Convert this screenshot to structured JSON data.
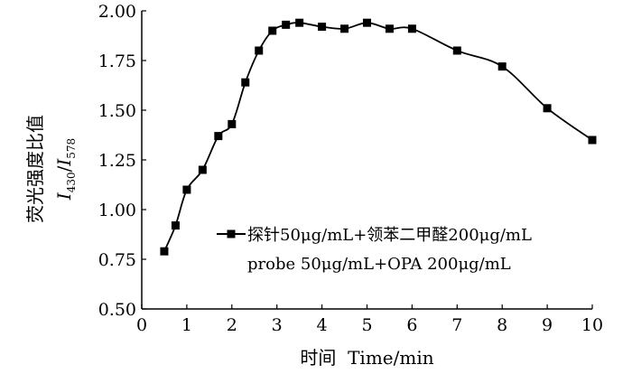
{
  "chart_data": {
    "type": "line",
    "xlabel": "时间  Time/min",
    "ylabel": {
      "line1": "荧光强度比值",
      "line2_prefix": "I",
      "line2_sub1": "430",
      "line2_sep": "/",
      "line2_prefix2": "I",
      "line2_sub2": "578"
    },
    "xlim": [
      0,
      10
    ],
    "ylim": [
      0.5,
      2.0
    ],
    "x_ticks": [
      "0",
      "1",
      "2",
      "3",
      "4",
      "5",
      "6",
      "7",
      "8",
      "9",
      "10"
    ],
    "y_ticks": [
      "0.50",
      "0.75",
      "1.00",
      "1.25",
      "1.50",
      "1.75",
      "2.00"
    ],
    "grid": false,
    "legend_position": "center-right",
    "legend": {
      "line1": "探针50μg/mL+领苯二甲醛200μg/mL",
      "line2": "probe 50μg/mL+OPA 200μg/mL"
    },
    "series": [
      {
        "name": "探针50μg/mL+领苯二甲醛200μg/mL",
        "color": "#000000",
        "marker": "square",
        "x": [
          0.5,
          0.75,
          1.0,
          1.35,
          1.7,
          2.0,
          2.3,
          2.6,
          2.9,
          3.2,
          3.5,
          4.0,
          4.5,
          5.0,
          5.5,
          6.0,
          7.0,
          8.0,
          9.0,
          10.0
        ],
        "y": [
          0.79,
          0.92,
          1.1,
          1.2,
          1.37,
          1.43,
          1.64,
          1.8,
          1.9,
          1.93,
          1.94,
          1.92,
          1.91,
          1.94,
          1.91,
          1.91,
          1.8,
          1.72,
          1.51,
          1.35
        ]
      }
    ]
  }
}
